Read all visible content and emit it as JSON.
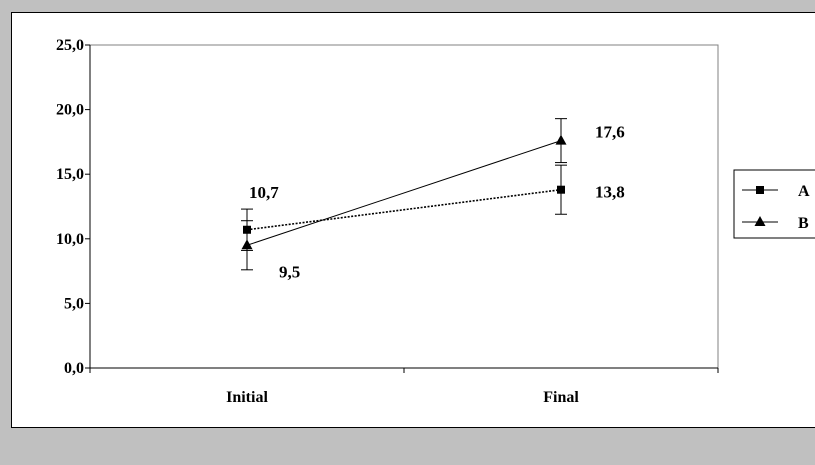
{
  "chart_data": {
    "type": "line",
    "categories": [
      "Initial",
      "Final"
    ],
    "series": [
      {
        "name": "A",
        "values": [
          10.7,
          13.8
        ],
        "errors": [
          1.6,
          1.9
        ],
        "labels": [
          "10,7",
          "13,8"
        ],
        "marker": "square",
        "line": "dotted"
      },
      {
        "name": "B",
        "values": [
          9.5,
          17.6
        ],
        "errors": [
          1.9,
          1.7
        ],
        "labels": [
          "9,5",
          "17,6"
        ],
        "marker": "triangle",
        "line": "solid"
      }
    ],
    "y_ticks": [
      "0,0",
      "5,0",
      "10,0",
      "15,0",
      "20,0",
      "25,0"
    ],
    "ylim": [
      0,
      25
    ],
    "grid": false,
    "legend": "right",
    "title": "",
    "xlabel": "",
    "ylabel": "",
    "colors": {
      "plot_bg": "#ffffff",
      "outer_bg": "#c0c0c0",
      "line": "#000000"
    }
  }
}
